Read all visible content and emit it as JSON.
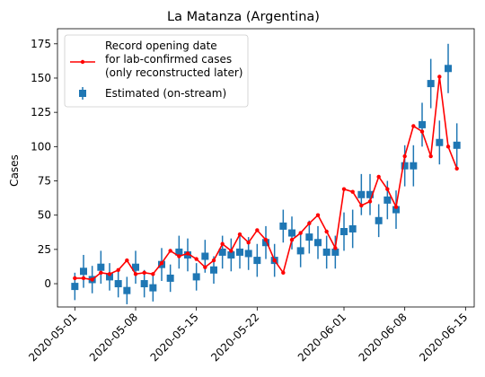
{
  "chart_data": {
    "type": "line",
    "title": "La Matanza (Argentina)",
    "ylabel": "Cases",
    "xlabel": "",
    "xlim": [
      "2020-04-29",
      "2020-06-16"
    ],
    "ylim": [
      -17,
      186
    ],
    "x_ticks": [
      "2020-05-01",
      "2020-05-08",
      "2020-05-15",
      "2020-05-22",
      "2020-06-01",
      "2020-06-08",
      "2020-06-15"
    ],
    "y_ticks": [
      0,
      25,
      50,
      75,
      100,
      125,
      150,
      175
    ],
    "legend": {
      "placement": "top-left",
      "line_label": "Record opening date\nfor lab-confirmed cases\n(only reconstructed later)",
      "marker_label": "Estimated (on-stream)"
    },
    "colors": {
      "line": "#ff0000",
      "estimated": "#1f77b4"
    },
    "series": [
      {
        "name": "Record opening date for lab-confirmed cases (only reconstructed later)",
        "kind": "line",
        "x": [
          "2020-05-01",
          "2020-05-02",
          "2020-05-03",
          "2020-05-04",
          "2020-05-05",
          "2020-05-06",
          "2020-05-07",
          "2020-05-08",
          "2020-05-09",
          "2020-05-10",
          "2020-05-11",
          "2020-05-12",
          "2020-05-13",
          "2020-05-14",
          "2020-05-15",
          "2020-05-16",
          "2020-05-17",
          "2020-05-18",
          "2020-05-19",
          "2020-05-20",
          "2020-05-21",
          "2020-05-22",
          "2020-05-23",
          "2020-05-24",
          "2020-05-25",
          "2020-05-26",
          "2020-05-27",
          "2020-05-28",
          "2020-05-29",
          "2020-05-30",
          "2020-05-31",
          "2020-06-01",
          "2020-06-02",
          "2020-06-03",
          "2020-06-04",
          "2020-06-05",
          "2020-06-06",
          "2020-06-07",
          "2020-06-08",
          "2020-06-09",
          "2020-06-10",
          "2020-06-11",
          "2020-06-12",
          "2020-06-13",
          "2020-06-14"
        ],
        "values": [
          4,
          4,
          3,
          8,
          7,
          10,
          17,
          7,
          8,
          7,
          15,
          24,
          20,
          22,
          18,
          12,
          17,
          29,
          24,
          36,
          30,
          39,
          32,
          17,
          8,
          32,
          37,
          44,
          50,
          38,
          26,
          69,
          67,
          57,
          60,
          78,
          69,
          56,
          93,
          115,
          111,
          93,
          151,
          100,
          84
        ]
      },
      {
        "name": "Estimated (on-stream)",
        "kind": "errorbar",
        "x": [
          "2020-05-01",
          "2020-05-02",
          "2020-05-03",
          "2020-05-04",
          "2020-05-05",
          "2020-05-06",
          "2020-05-07",
          "2020-05-08",
          "2020-05-09",
          "2020-05-10",
          "2020-05-11",
          "2020-05-12",
          "2020-05-13",
          "2020-05-14",
          "2020-05-15",
          "2020-05-16",
          "2020-05-17",
          "2020-05-18",
          "2020-05-19",
          "2020-05-20",
          "2020-05-21",
          "2020-05-22",
          "2020-05-23",
          "2020-05-24",
          "2020-05-25",
          "2020-05-26",
          "2020-05-27",
          "2020-05-28",
          "2020-05-29",
          "2020-05-30",
          "2020-05-31",
          "2020-06-01",
          "2020-06-02",
          "2020-06-03",
          "2020-06-04",
          "2020-06-05",
          "2020-06-06",
          "2020-06-07",
          "2020-06-08",
          "2020-06-09",
          "2020-06-10",
          "2020-06-11",
          "2020-06-12",
          "2020-06-13",
          "2020-06-14"
        ],
        "values": [
          -2,
          9,
          3,
          12,
          5,
          0,
          -5,
          12,
          0,
          -3,
          14,
          4,
          23,
          21,
          5,
          20,
          10,
          23,
          21,
          23,
          22,
          17,
          30,
          17,
          42,
          37,
          24,
          34,
          30,
          23,
          23,
          38,
          40,
          65,
          65,
          46,
          61,
          54,
          86,
          86,
          116,
          146,
          103,
          157,
          101
        ],
        "errors": [
          10,
          12,
          10,
          12,
          10,
          10,
          10,
          12,
          10,
          10,
          12,
          10,
          12,
          12,
          10,
          12,
          10,
          12,
          12,
          12,
          12,
          12,
          12,
          12,
          12,
          12,
          12,
          12,
          12,
          12,
          12,
          14,
          14,
          15,
          15,
          12,
          14,
          14,
          15,
          15,
          16,
          18,
          16,
          18,
          16
        ]
      }
    ]
  }
}
